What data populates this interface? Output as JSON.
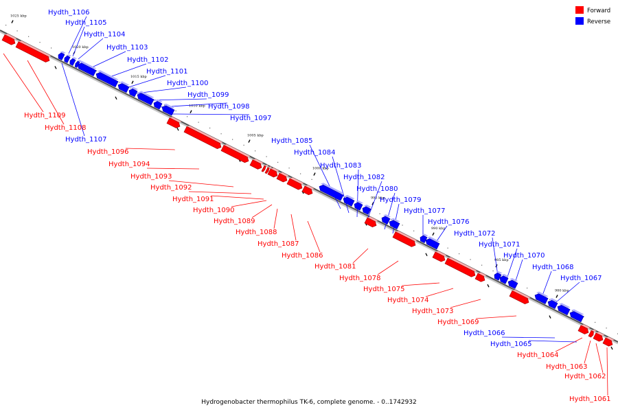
{
  "legend": {
    "forward": {
      "label": "Forward",
      "color": "#ff0000"
    },
    "reverse": {
      "label": "Reverse",
      "color": "#0000ff"
    }
  },
  "caption": "Hydrogenobacter thermophilus TK-6, complete genome. - 0..1742932",
  "ticks": [
    "1025 kbp",
    "1020 kbp",
    "1015 kbp",
    "1010 kbp",
    "1005 kbp",
    "1000 kbp",
    "995 kbp",
    "990 kbp",
    "985 kbp",
    "980 kbp"
  ],
  "genes": [
    {
      "name": "Hydth_1061",
      "strand": "forward"
    },
    {
      "name": "Hydth_1062",
      "strand": "forward"
    },
    {
      "name": "Hydth_1063",
      "strand": "forward"
    },
    {
      "name": "Hydth_1064",
      "strand": "forward"
    },
    {
      "name": "Hydth_1065",
      "strand": "reverse"
    },
    {
      "name": "Hydth_1066",
      "strand": "reverse"
    },
    {
      "name": "Hydth_1067",
      "strand": "reverse"
    },
    {
      "name": "Hydth_1068",
      "strand": "reverse"
    },
    {
      "name": "Hydth_1069",
      "strand": "forward"
    },
    {
      "name": "Hydth_1070",
      "strand": "reverse"
    },
    {
      "name": "Hydth_1071",
      "strand": "reverse"
    },
    {
      "name": "Hydth_1072",
      "strand": "reverse"
    },
    {
      "name": "Hydth_1073",
      "strand": "forward"
    },
    {
      "name": "Hydth_1074",
      "strand": "forward"
    },
    {
      "name": "Hydth_1075",
      "strand": "forward"
    },
    {
      "name": "Hydth_1076",
      "strand": "reverse"
    },
    {
      "name": "Hydth_1077",
      "strand": "reverse"
    },
    {
      "name": "Hydth_1078",
      "strand": "forward"
    },
    {
      "name": "Hydth_1079",
      "strand": "reverse"
    },
    {
      "name": "Hydth_1080",
      "strand": "reverse"
    },
    {
      "name": "Hydth_1081",
      "strand": "forward"
    },
    {
      "name": "Hydth_1082",
      "strand": "reverse"
    },
    {
      "name": "Hydth_1083",
      "strand": "reverse"
    },
    {
      "name": "Hydth_1084",
      "strand": "reverse"
    },
    {
      "name": "Hydth_1085",
      "strand": "reverse"
    },
    {
      "name": "Hydth_1086",
      "strand": "forward"
    },
    {
      "name": "Hydth_1087",
      "strand": "forward"
    },
    {
      "name": "Hydth_1088",
      "strand": "forward"
    },
    {
      "name": "Hydth_1089",
      "strand": "forward"
    },
    {
      "name": "Hydth_1090",
      "strand": "forward"
    },
    {
      "name": "Hydth_1091",
      "strand": "forward"
    },
    {
      "name": "Hydth_1092",
      "strand": "forward"
    },
    {
      "name": "Hydth_1093",
      "strand": "forward"
    },
    {
      "name": "Hydth_1094",
      "strand": "forward"
    },
    {
      "name": "Hydth_1096",
      "strand": "forward"
    },
    {
      "name": "Hydth_1097",
      "strand": "reverse"
    },
    {
      "name": "Hydth_1098",
      "strand": "reverse"
    },
    {
      "name": "Hydth_1099",
      "strand": "reverse"
    },
    {
      "name": "Hydth_1100",
      "strand": "reverse"
    },
    {
      "name": "Hydth_1101",
      "strand": "reverse"
    },
    {
      "name": "Hydth_1102",
      "strand": "reverse"
    },
    {
      "name": "Hydth_1103",
      "strand": "reverse"
    },
    {
      "name": "Hydth_1104",
      "strand": "reverse"
    },
    {
      "name": "Hydth_1105",
      "strand": "reverse"
    },
    {
      "name": "Hydth_1106",
      "strand": "reverse"
    },
    {
      "name": "Hydth_1107",
      "strand": "reverse"
    },
    {
      "name": "Hydth_1108",
      "strand": "forward"
    },
    {
      "name": "Hydth_1109",
      "strand": "forward"
    }
  ]
}
